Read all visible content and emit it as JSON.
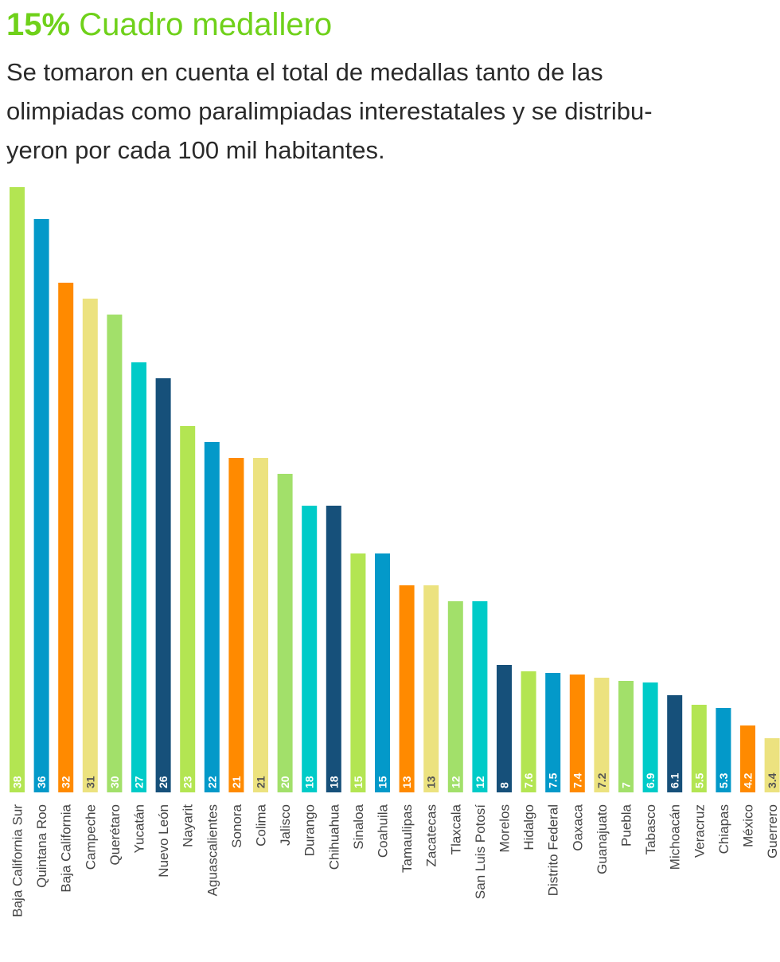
{
  "header": {
    "percent": "15%",
    "title": "Cuadro medallero",
    "description_lines": [
      "Se tomaron en cuenta el total de medallas tanto de las",
      "olimpiadas como paralimpiadas interestatales y se distribu-",
      "yeron por cada 100 mil habitantes."
    ]
  },
  "chart_data": {
    "type": "bar",
    "title": "Cuadro medallero",
    "xlabel": "",
    "ylabel": "",
    "ylim": [
      0,
      38
    ],
    "grid": false,
    "legend": "none",
    "categories": [
      "Baja California Sur",
      "Quintana Roo",
      "Baja California",
      "Campeche",
      "Querétaro",
      "Yucatán",
      "Nuevo León",
      "Nayarit",
      "Aguascalientes",
      "Sonora",
      "Colima",
      "Jalisco",
      "Durango",
      "Chihuahua",
      "Sinaloa",
      "Coahuila",
      "Tamaulipas",
      "Zacatecas",
      "Tlaxcala",
      "San Luis Potosí",
      "Morelos",
      "Hidalgo",
      "Distrito Federal",
      "Oaxaca",
      "Guanajuato",
      "Puebla",
      "Tabasco",
      "Michoacán",
      "Veracruz",
      "Chiapas",
      "México",
      "Guerrero"
    ],
    "values": [
      38,
      36,
      32,
      31,
      30,
      27,
      26,
      23,
      22,
      21,
      21,
      20,
      18,
      18,
      15,
      15,
      13,
      13,
      12,
      12,
      8,
      7.6,
      7.5,
      7.4,
      7.2,
      7,
      6.9,
      6.1,
      5.5,
      5.3,
      4.2,
      3.4
    ],
    "value_labels": [
      "38",
      "36",
      "32",
      "31",
      "30",
      "27",
      "26",
      "23",
      "22",
      "21",
      "21",
      "20",
      "18",
      "18",
      "15",
      "15",
      "13",
      "13",
      "12",
      "12",
      "8",
      "7.6",
      "7.5",
      "7.4",
      "7.2",
      "7",
      "6.9",
      "6.1",
      "5.5",
      "5.3",
      "4.2",
      "3.4"
    ],
    "color_cycle": [
      "#b3e552",
      "#0399c9",
      "#ff8a00",
      "#ece27f",
      "#a2e06a",
      "#00cbc8",
      "#16507a"
    ],
    "label_colors": [
      "#ffffff",
      "#ffffff",
      "#ffffff",
      "#555555",
      "#ffffff",
      "#ffffff",
      "#ffffff"
    ]
  }
}
